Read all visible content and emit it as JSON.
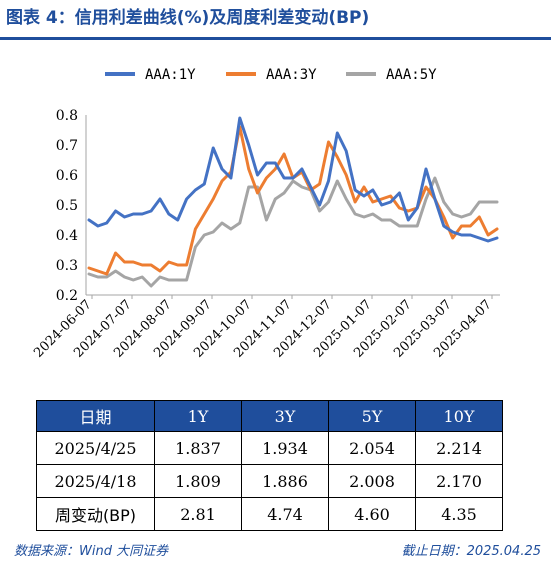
{
  "title": "图表 4：信用利差曲线(%)及周度利差变动(BP)",
  "chart_data": {
    "type": "line",
    "ylim": [
      0.2,
      0.8
    ],
    "yticks": [
      "0.2",
      "0.3",
      "0.4",
      "0.5",
      "0.6",
      "0.7",
      "0.8"
    ],
    "xticks": [
      "2024-06-07",
      "2024-07-07",
      "2024-08-07",
      "2024-09-07",
      "2024-10-07",
      "2024-11-07",
      "2024-12-07",
      "2025-01-07",
      "2025-02-07",
      "2025-03-07",
      "2025-04-07"
    ],
    "legend_position": "top",
    "series": [
      {
        "name": "AAA:1Y",
        "color": "#4472c4",
        "values": [
          0.45,
          0.43,
          0.44,
          0.48,
          0.46,
          0.47,
          0.47,
          0.48,
          0.52,
          0.47,
          0.45,
          0.52,
          0.55,
          0.57,
          0.69,
          0.62,
          0.59,
          0.79,
          0.7,
          0.6,
          0.64,
          0.64,
          0.59,
          0.59,
          0.62,
          0.56,
          0.5,
          0.58,
          0.74,
          0.68,
          0.55,
          0.53,
          0.55,
          0.5,
          0.51,
          0.54,
          0.45,
          0.49,
          0.62,
          0.52,
          0.43,
          0.41,
          0.4,
          0.4,
          0.39,
          0.38,
          0.39
        ]
      },
      {
        "name": "AAA:3Y",
        "color": "#ed7d31",
        "values": [
          0.29,
          0.28,
          0.27,
          0.34,
          0.31,
          0.31,
          0.3,
          0.3,
          0.28,
          0.31,
          0.3,
          0.3,
          0.42,
          0.47,
          0.52,
          0.58,
          0.61,
          0.76,
          0.62,
          0.54,
          0.59,
          0.62,
          0.67,
          0.59,
          0.61,
          0.55,
          0.57,
          0.71,
          0.66,
          0.6,
          0.51,
          0.56,
          0.51,
          0.52,
          0.53,
          0.49,
          0.48,
          0.49,
          0.56,
          0.52,
          0.46,
          0.39,
          0.43,
          0.43,
          0.46,
          0.4,
          0.42
        ]
      },
      {
        "name": "AAA:5Y",
        "color": "#a5a5a5",
        "values": [
          0.27,
          0.26,
          0.26,
          0.28,
          0.26,
          0.25,
          0.26,
          0.23,
          0.26,
          0.25,
          0.25,
          0.25,
          0.36,
          0.4,
          0.41,
          0.44,
          0.42,
          0.44,
          0.56,
          0.56,
          0.45,
          0.52,
          0.54,
          0.58,
          0.56,
          0.55,
          0.48,
          0.51,
          0.58,
          0.52,
          0.47,
          0.46,
          0.47,
          0.45,
          0.45,
          0.43,
          0.43,
          0.43,
          0.52,
          0.59,
          0.51,
          0.47,
          0.46,
          0.47,
          0.51,
          0.51,
          0.51
        ]
      }
    ]
  },
  "table": {
    "header": [
      "日期",
      "1Y",
      "3Y",
      "5Y",
      "10Y"
    ],
    "rows": [
      [
        "2025/4/25",
        "1.837",
        "1.934",
        "2.054",
        "2.214"
      ],
      [
        "2025/4/18",
        "1.809",
        "1.886",
        "2.008",
        "2.170"
      ],
      [
        "周变动(BP)",
        "2.81",
        "4.74",
        "4.60",
        "4.35"
      ]
    ]
  },
  "footer": {
    "source": "数据来源：Wind 大同证券",
    "cutoff": "截止日期：2025.04.25"
  }
}
